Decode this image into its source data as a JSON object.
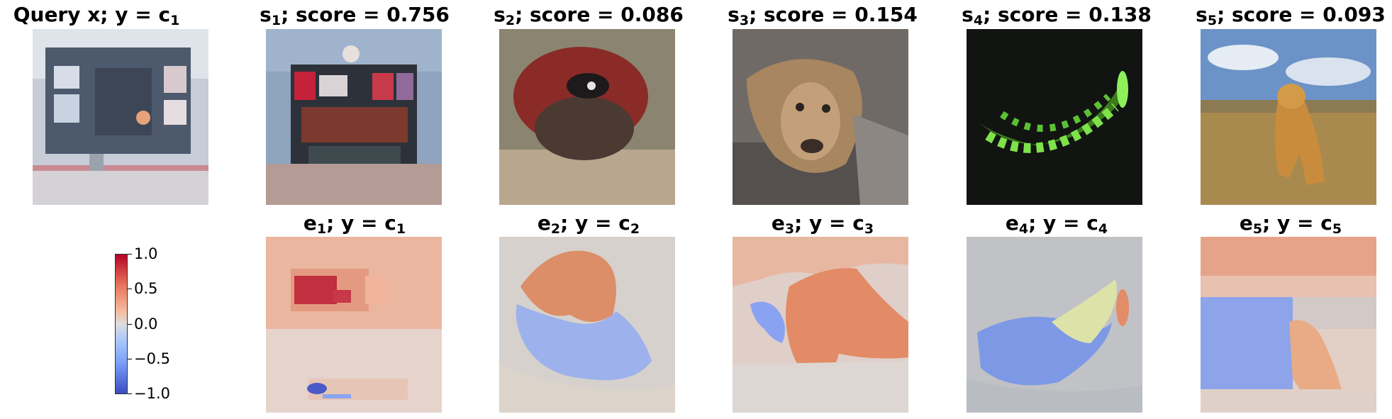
{
  "query": {
    "label": "Query x; y = c",
    "class_sub": "1"
  },
  "samples": [
    {
      "s": "s",
      "sub": "1",
      "score_text": "; score = 0.756",
      "score": 0.756,
      "scene": "scoreboard"
    },
    {
      "s": "s",
      "sub": "2",
      "score_text": "; score = 0.086",
      "score": 0.086,
      "scene": "cat-on-pillow"
    },
    {
      "s": "s",
      "sub": "3",
      "score_text": "; score = 0.154",
      "score": 0.154,
      "scene": "lioness"
    },
    {
      "s": "s",
      "sub": "4",
      "score_text": "; score = 0.138",
      "score": 0.138,
      "scene": "glowing-green-object"
    },
    {
      "s": "s",
      "sub": "5",
      "score_text": "; score = 0.093",
      "score": 0.093,
      "scene": "golden-retriever"
    }
  ],
  "explanations": [
    {
      "e": "e",
      "sub": "1",
      "mid": "; y = c",
      "csub": "1"
    },
    {
      "e": "e",
      "sub": "2",
      "mid": "; y = c",
      "csub": "2"
    },
    {
      "e": "e",
      "sub": "3",
      "mid": "; y = c",
      "csub": "3"
    },
    {
      "e": "e",
      "sub": "4",
      "mid": "; y = c",
      "csub": "4"
    },
    {
      "e": "e",
      "sub": "5",
      "mid": "; y = c",
      "csub": "5"
    }
  ],
  "colorbar": {
    "colormap": "coolwarm",
    "ticks": [
      "1.0",
      "0.5",
      "0.0",
      "−0.5",
      "−1.0"
    ],
    "colors": {
      "high": "#b40426",
      "mid": "#dddddd",
      "low": "#3b4cc0"
    }
  }
}
